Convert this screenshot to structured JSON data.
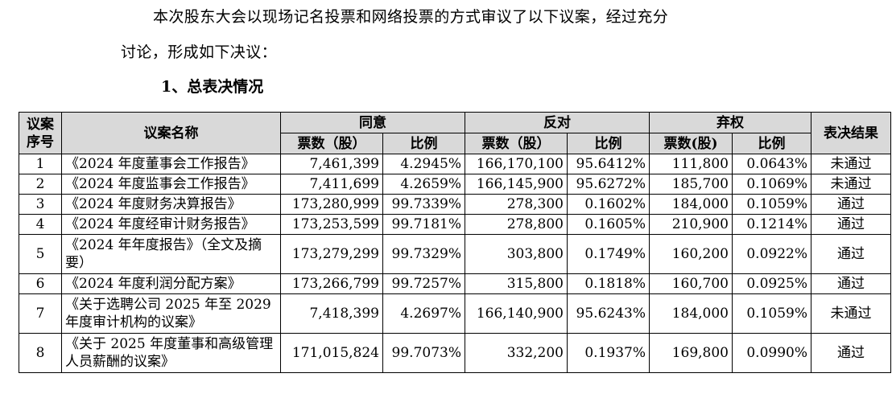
{
  "intro": {
    "line1": "本次股东大会以现场记名投票和网络投票的方式审议了以下议案，经过充分",
    "line2": "讨论，形成如下决议："
  },
  "section_heading": "1、总表决情况",
  "table": {
    "headers": {
      "index": "议案序号",
      "name": "议案名称",
      "agree": "同意",
      "against": "反对",
      "abstain": "弃权",
      "result": "表决结果",
      "votes_a": "票数（股）",
      "votes_b": "票数（股）",
      "votes_c": "票数(股)",
      "ratio": "比例"
    },
    "rows": [
      {
        "index": "1",
        "name": "《2024 年度董事会工作报告》",
        "agree_votes": "7,461,399",
        "agree_ratio": "4.2945%",
        "against_votes": "166,170,100",
        "against_ratio": "95.6412%",
        "abstain_votes": "111,800",
        "abstain_ratio": "0.0643%",
        "result": "未通过"
      },
      {
        "index": "2",
        "name": "《2024 年度监事会工作报告》",
        "agree_votes": "7,411,699",
        "agree_ratio": "4.2659%",
        "against_votes": "166,145,900",
        "against_ratio": "95.6272%",
        "abstain_votes": "185,700",
        "abstain_ratio": "0.1069%",
        "result": "未通过"
      },
      {
        "index": "3",
        "name": "《2024 年度财务决算报告》",
        "agree_votes": "173,280,999",
        "agree_ratio": "99.7339%",
        "against_votes": "278,300",
        "against_ratio": "0.1602%",
        "abstain_votes": "184,000",
        "abstain_ratio": "0.1059%",
        "result": "通过"
      },
      {
        "index": "4",
        "name": "《2024 年度经审计财务报告》",
        "agree_votes": "173,253,599",
        "agree_ratio": "99.7181%",
        "against_votes": "278,800",
        "against_ratio": "0.1605%",
        "abstain_votes": "210,900",
        "abstain_ratio": "0.1214%",
        "result": "通过"
      },
      {
        "index": "5",
        "name": "《2024 年年度报告》（全文及摘要）",
        "agree_votes": "173,279,299",
        "agree_ratio": "99.7329%",
        "against_votes": "303,800",
        "against_ratio": "0.1749%",
        "abstain_votes": "160,200",
        "abstain_ratio": "0.0922%",
        "result": "通过"
      },
      {
        "index": "6",
        "name": "《2024 年度利润分配方案》",
        "agree_votes": "173,266,799",
        "agree_ratio": "99.7257%",
        "against_votes": "315,800",
        "against_ratio": "0.1818%",
        "abstain_votes": "160,700",
        "abstain_ratio": "0.0925%",
        "result": "通过"
      },
      {
        "index": "7",
        "name": "《关于选聘公司 2025 年至 2029 年度审计机构的议案》",
        "agree_votes": "7,418,399",
        "agree_ratio": "4.2697%",
        "against_votes": "166,140,900",
        "against_ratio": "95.6243%",
        "abstain_votes": "184,000",
        "abstain_ratio": "0.1059%",
        "result": "未通过"
      },
      {
        "index": "8",
        "name": "《关于 2025 年度董事和高级管理人员薪酬的议案》",
        "agree_votes": "171,015,824",
        "agree_ratio": "99.7073%",
        "against_votes": "332,200",
        "against_ratio": "0.1937%",
        "abstain_votes": "169,800",
        "abstain_ratio": "0.0990%",
        "result": "通过"
      }
    ]
  }
}
